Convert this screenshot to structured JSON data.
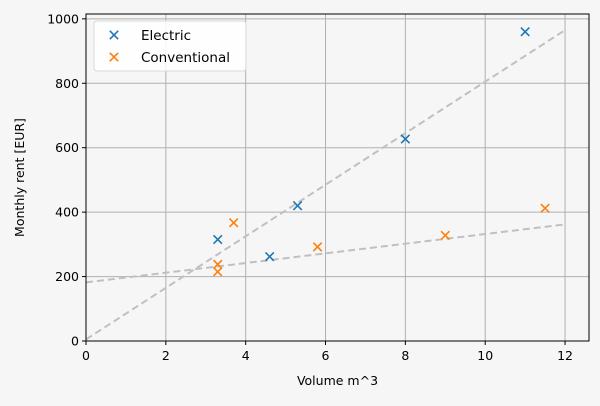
{
  "chart_data": {
    "type": "scatter",
    "title": "",
    "xlabel": "Volume m^3",
    "ylabel": "Monthly rent [EUR]",
    "xlim": [
      0,
      12.6
    ],
    "ylim": [
      0,
      1015
    ],
    "xticks": [
      0,
      2,
      4,
      6,
      8,
      10,
      12
    ],
    "yticks": [
      0,
      200,
      400,
      600,
      800,
      1000
    ],
    "grid": true,
    "legend_position": "top-left",
    "series": [
      {
        "name": "Electric",
        "color": "#1f77b4",
        "marker": "x",
        "points": [
          [
            3.3,
            315
          ],
          [
            4.6,
            262
          ],
          [
            5.3,
            420
          ],
          [
            8.0,
            627
          ],
          [
            11.0,
            960
          ]
        ],
        "trendline": {
          "x": [
            0,
            12
          ],
          "y": [
            5,
            965
          ],
          "style": "dashed",
          "color": "#c0c0c0"
        }
      },
      {
        "name": "Conventional",
        "color": "#ff7f0e",
        "marker": "x",
        "points": [
          [
            3.3,
            238
          ],
          [
            3.3,
            215
          ],
          [
            3.7,
            367
          ],
          [
            5.8,
            292
          ],
          [
            9.0,
            328
          ],
          [
            11.5,
            412
          ]
        ],
        "trendline": {
          "x": [
            0,
            12
          ],
          "y": [
            182,
            362
          ],
          "style": "dashed",
          "color": "#c0c0c0"
        }
      }
    ]
  }
}
